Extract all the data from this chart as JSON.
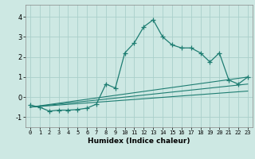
{
  "title": "",
  "xlabel": "Humidex (Indice chaleur)",
  "xlim": [
    -0.5,
    23.5
  ],
  "ylim": [
    -1.5,
    4.6
  ],
  "xticks": [
    0,
    1,
    2,
    3,
    4,
    5,
    6,
    7,
    8,
    9,
    10,
    11,
    12,
    13,
    14,
    15,
    16,
    17,
    18,
    19,
    20,
    21,
    22,
    23
  ],
  "yticks": [
    -1,
    0,
    1,
    2,
    3,
    4
  ],
  "bg_color": "#cde8e3",
  "grid_color": "#aacfca",
  "line_color": "#1e7d72",
  "main_series": {
    "x": [
      0,
      1,
      2,
      3,
      4,
      5,
      6,
      7,
      8,
      9,
      10,
      11,
      12,
      13,
      14,
      15,
      16,
      17,
      18,
      19,
      20,
      21,
      22,
      23
    ],
    "y": [
      -0.4,
      -0.5,
      -0.7,
      -0.65,
      -0.65,
      -0.62,
      -0.55,
      -0.35,
      0.65,
      0.45,
      2.2,
      2.7,
      3.5,
      3.85,
      3.0,
      2.6,
      2.45,
      2.45,
      2.2,
      1.75,
      2.2,
      0.85,
      0.65,
      1.0
    ]
  },
  "linear_series": [
    {
      "x0": 0,
      "y0": -0.5,
      "x1": 23,
      "y1": 1.0
    },
    {
      "x0": 0,
      "y0": -0.5,
      "x1": 23,
      "y1": 0.65
    },
    {
      "x0": 0,
      "y0": -0.5,
      "x1": 23,
      "y1": 0.3
    }
  ]
}
